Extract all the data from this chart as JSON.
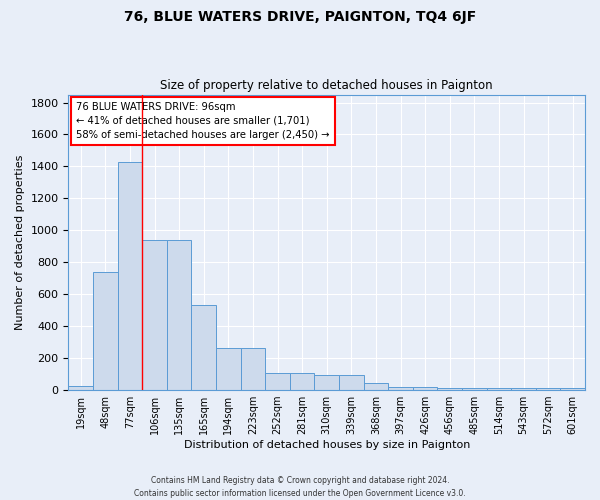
{
  "title": "76, BLUE WATERS DRIVE, PAIGNTON, TQ4 6JF",
  "subtitle": "Size of property relative to detached houses in Paignton",
  "xlabel": "Distribution of detached houses by size in Paignton",
  "ylabel": "Number of detached properties",
  "categories": [
    "19sqm",
    "48sqm",
    "77sqm",
    "106sqm",
    "135sqm",
    "165sqm",
    "194sqm",
    "223sqm",
    "252sqm",
    "281sqm",
    "310sqm",
    "339sqm",
    "368sqm",
    "397sqm",
    "426sqm",
    "456sqm",
    "485sqm",
    "514sqm",
    "543sqm",
    "572sqm",
    "601sqm"
  ],
  "values": [
    25,
    740,
    1430,
    940,
    940,
    530,
    265,
    265,
    110,
    110,
    95,
    95,
    45,
    20,
    20,
    15,
    15,
    10,
    10,
    10,
    10
  ],
  "bar_color": "#cddaec",
  "bar_edge_color": "#5b9bd5",
  "background_color": "#e8eef8",
  "grid_color": "#ffffff",
  "annotation_box_text": "76 BLUE WATERS DRIVE: 96sqm\n← 41% of detached houses are smaller (1,701)\n58% of semi-detached houses are larger (2,450) →",
  "red_line_x": 2.5,
  "ylim": [
    0,
    1850
  ],
  "yticks": [
    0,
    200,
    400,
    600,
    800,
    1000,
    1200,
    1400,
    1600,
    1800
  ],
  "footer": "Contains HM Land Registry data © Crown copyright and database right 2024.\nContains public sector information licensed under the Open Government Licence v3.0."
}
